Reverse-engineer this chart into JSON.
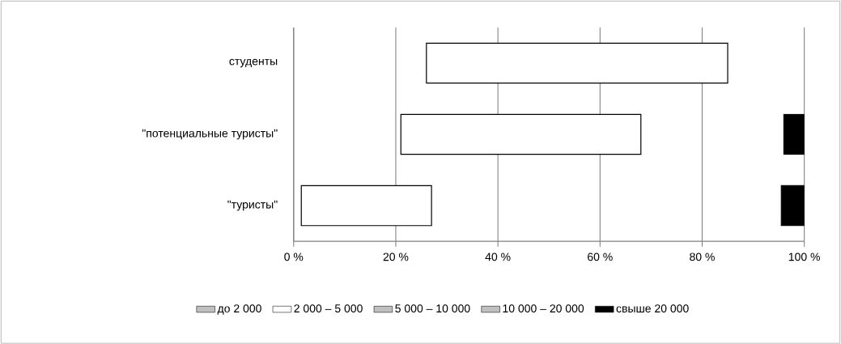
{
  "chart_data": {
    "type": "bar",
    "orientation": "horizontal",
    "categories": [
      "студенты",
      "\"потенциальные туристы\"",
      "\"туристы\""
    ],
    "series": [
      {
        "name": "до 2 000",
        "color": "#c0c0c0",
        "values": [
          null,
          null,
          null
        ]
      },
      {
        "name": "2 000 – 5 000",
        "color": "#ffffff",
        "base": [
          26,
          21,
          1.5
        ],
        "values": [
          59,
          47,
          25.5
        ]
      },
      {
        "name": "5 000 – 10 000",
        "color": "#c0c0c0",
        "values": [
          null,
          null,
          null
        ]
      },
      {
        "name": "10 000 – 20 000",
        "color": "#c0c0c0",
        "values": [
          null,
          null,
          null
        ]
      },
      {
        "name": "свыше 20 000",
        "color": "#000000",
        "base": [
          null,
          96,
          95.5
        ],
        "values": [
          null,
          4,
          4.5
        ]
      }
    ],
    "xlim": [
      0,
      100
    ],
    "xticks": [
      {
        "value": 0,
        "label": "0 %"
      },
      {
        "value": 20,
        "label": "20 %"
      },
      {
        "value": 40,
        "label": "40 %"
      },
      {
        "value": 60,
        "label": "60 %"
      },
      {
        "value": 80,
        "label": "80 %"
      },
      {
        "value": 100,
        "label": "100 %"
      }
    ],
    "grid": "x",
    "legend": "bottom"
  }
}
